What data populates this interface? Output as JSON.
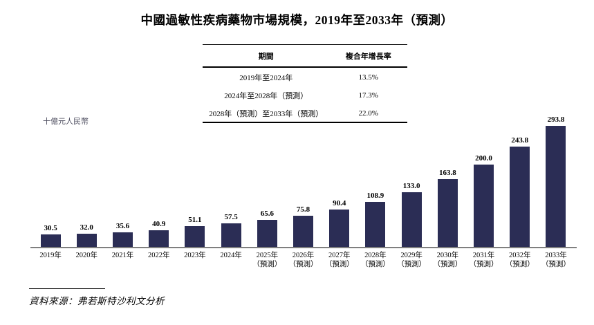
{
  "title": "中國過敏性疾病藥物市場規模，2019年至2033年（預測）",
  "unit_label": "十億元人民幣",
  "source": "資料來源：弗若斯特沙利文分析",
  "colors": {
    "bar": "#2b2d55",
    "axis": "#7f7f7f"
  },
  "cagr_table": {
    "headers": [
      "期間",
      "複合年增長率"
    ],
    "rows": [
      {
        "period": "2019年至2024年",
        "cagr": "13.5%"
      },
      {
        "period": "2024年至2028年（預測）",
        "cagr": "17.3%"
      },
      {
        "period": "2028年（預測）至2033年（預測）",
        "cagr": "22.0%"
      }
    ]
  },
  "chart_data": {
    "type": "bar",
    "title": "中國過敏性疾病藥物市場規模，2019年至2033年（預測）",
    "xlabel": "",
    "ylabel": "十億元人民幣",
    "ylim": [
      0,
      300
    ],
    "grid": false,
    "legend": false,
    "bar_color": "#2b2d55",
    "categories": [
      "2019年",
      "2020年",
      "2021年",
      "2022年",
      "2023年",
      "2024年",
      "2025年（預測）",
      "2026年（預測）",
      "2027年（預測）",
      "2028年（預測）",
      "2029年（預測）",
      "2030年（預測）",
      "2031年（預測）",
      "2032年（預測）",
      "2033年（預測）"
    ],
    "values": [
      30.5,
      32.0,
      35.6,
      40.9,
      51.1,
      57.5,
      65.6,
      75.8,
      90.4,
      108.9,
      133.0,
      163.8,
      200.0,
      243.8,
      293.8
    ]
  }
}
